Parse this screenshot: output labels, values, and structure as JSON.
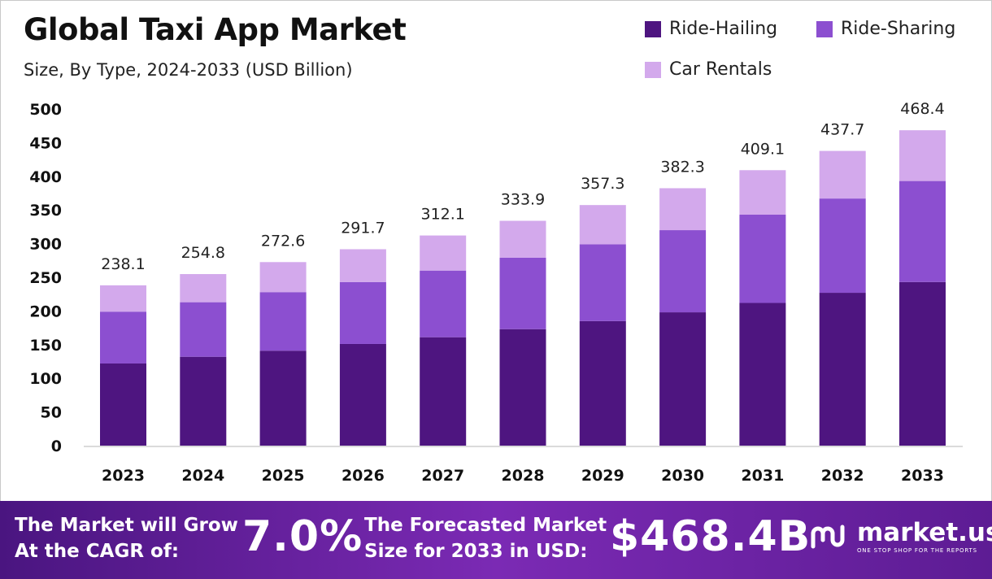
{
  "header": {
    "title": "Global Taxi App Market",
    "subtitle": "Size, By Type, 2024-2033 (USD Billion)"
  },
  "colors": {
    "ride_hailing": "#4e1580",
    "ride_sharing": "#8c4fd0",
    "car_rentals": "#d3a9ec"
  },
  "chart_data": {
    "type": "bar",
    "stacked": true,
    "categories": [
      "2023",
      "2024",
      "2025",
      "2026",
      "2027",
      "2028",
      "2029",
      "2030",
      "2031",
      "2032",
      "2033"
    ],
    "series": [
      {
        "name": "Ride-Hailing",
        "values": [
          122,
          132,
          141,
          151,
          161,
          173,
          185,
          198,
          212,
          227,
          243
        ]
      },
      {
        "name": "Ride-Sharing",
        "values": [
          77,
          81,
          87,
          92,
          99,
          106,
          114,
          122,
          131,
          140,
          150
        ]
      },
      {
        "name": "Car Rentals",
        "values": [
          39.1,
          41.8,
          44.6,
          48.7,
          52.1,
          54.9,
          58.3,
          62.3,
          66.1,
          70.7,
          75.4
        ]
      }
    ],
    "totals": [
      "238.1",
      "254.8",
      "272.6",
      "291.7",
      "312.1",
      "333.9",
      "357.3",
      "382.3",
      "409.1",
      "437.7",
      "468.4"
    ],
    "y_ticks": [
      "0",
      "50",
      "100",
      "150",
      "200",
      "250",
      "300",
      "350",
      "400",
      "450",
      "500"
    ],
    "ylim": [
      0,
      500
    ],
    "grid": false,
    "legend_position": "top-right"
  },
  "footer": {
    "cagr_text_line1": "The Market will Grow",
    "cagr_text_line2": "At the CAGR of:",
    "cagr_value": "7.0%",
    "forecast_text_line1": "The Forecasted Market",
    "forecast_text_line2": "Size for 2033 in USD:",
    "forecast_value": "$468.4B",
    "brand_name": "market.us",
    "brand_tagline": "ONE STOP SHOP FOR THE REPORTS",
    "brand_icon": "market-us-logo-icon"
  }
}
